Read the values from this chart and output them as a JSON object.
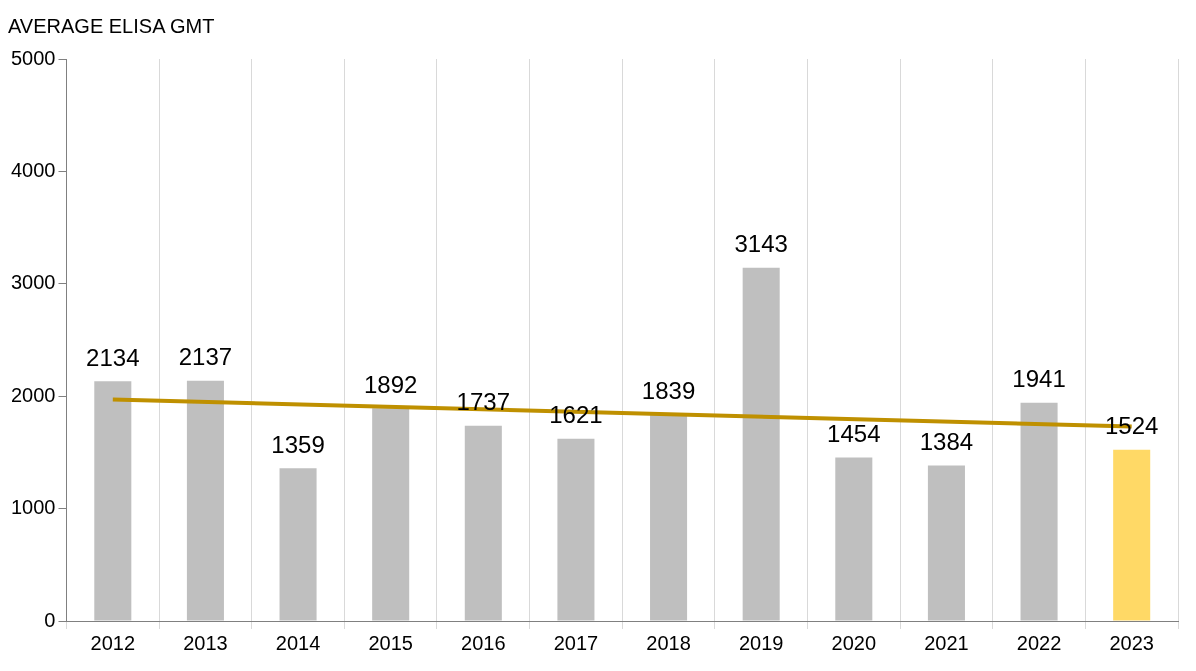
{
  "chart_data": {
    "type": "bar",
    "ylabel": "AVERAGE ELISA GMT",
    "categories": [
      "2012",
      "2013",
      "2014",
      "2015",
      "2016",
      "2017",
      "2018",
      "2019",
      "2020",
      "2021",
      "2022",
      "2023"
    ],
    "series": [
      {
        "colors": [
          "#bfbfbf",
          "#bfbfbf",
          "#bfbfbf",
          "#bfbfbf",
          "#bfbfbf",
          "#bfbfbf",
          "#bfbfbf",
          "#bfbfbf",
          "#bfbfbf",
          "#bfbfbf",
          "#bfbfbf",
          "#ffd966"
        ],
        "values": [
          2134,
          2137,
          1359,
          1892,
          1737,
          1621,
          1839,
          3143,
          1454,
          1384,
          1941,
          1524
        ],
        "value_labels": [
          "2134",
          "2137",
          "1359",
          "1892",
          "1737",
          "1621",
          "1839",
          "3143",
          "1454",
          "1384",
          "1941",
          "1524"
        ]
      },
      {
        "type": "line",
        "color": "#bf9000",
        "values": [
          1970,
          null,
          null,
          null,
          null,
          null,
          null,
          null,
          null,
          null,
          null,
          1730
        ]
      }
    ],
    "ylim": [
      0,
      5000
    ],
    "yticks": [
      0,
      1000,
      2000,
      3000,
      4000,
      5000
    ],
    "grid": "x",
    "legend": false
  }
}
